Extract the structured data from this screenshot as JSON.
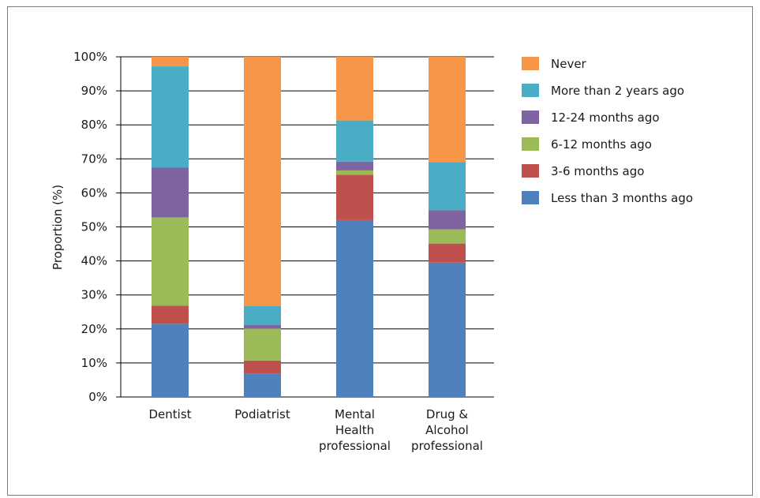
{
  "chart_data": {
    "type": "bar",
    "stacked": true,
    "ylabel": "Proportion (%)",
    "xlabel": "",
    "ylim": [
      0,
      100
    ],
    "y_ticks": [
      "0%",
      "10%",
      "20%",
      "30%",
      "40%",
      "50%",
      "60%",
      "70%",
      "80%",
      "90%",
      "100%"
    ],
    "grid": true,
    "legend_position": "right",
    "categories": [
      [
        "Dentist"
      ],
      [
        "Podiatrist"
      ],
      [
        "Mental",
        "Health",
        "professional"
      ],
      [
        "Drug &",
        "Alcohol",
        "professional"
      ]
    ],
    "series": [
      {
        "name": "Less than 3 months ago",
        "color": "#4F81BD",
        "values": [
          21.5,
          6.8,
          52.0,
          39.5
        ]
      },
      {
        "name": "3-6 months ago",
        "color": "#C0504D",
        "values": [
          5.3,
          3.9,
          13.3,
          5.6
        ]
      },
      {
        "name": "6-12 months ago",
        "color": "#9BBB59",
        "values": [
          26.0,
          9.4,
          1.3,
          4.2
        ]
      },
      {
        "name": "12-24 months ago",
        "color": "#8064A2",
        "values": [
          14.6,
          1.1,
          2.6,
          5.6
        ]
      },
      {
        "name": "More than 2 years ago",
        "color": "#4BACC6",
        "values": [
          29.8,
          5.5,
          12.1,
          14.2
        ]
      },
      {
        "name": "Never",
        "color": "#F79646",
        "values": [
          2.8,
          73.3,
          18.7,
          30.9
        ]
      }
    ]
  }
}
